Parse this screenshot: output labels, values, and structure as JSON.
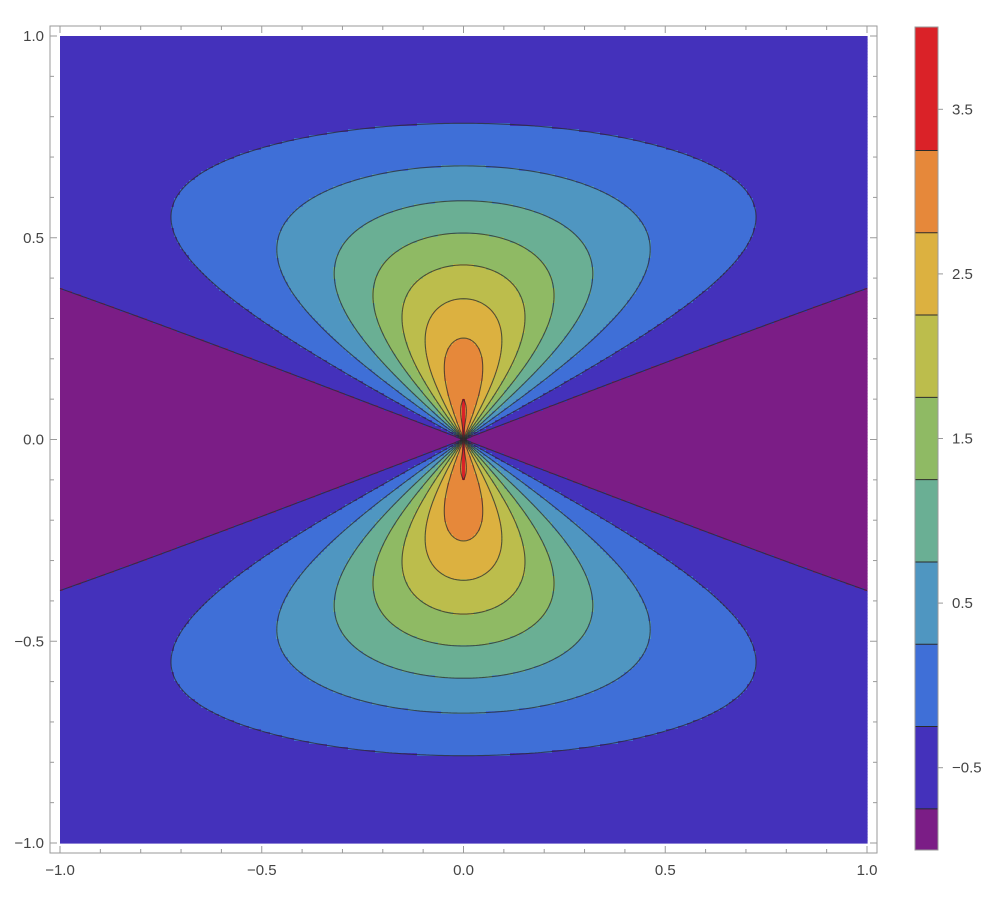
{
  "chart_data": {
    "type": "contour",
    "title": "",
    "xlabel": "",
    "ylabel": "",
    "xlim": [
      -1,
      1
    ],
    "ylim": [
      -1,
      1
    ],
    "x_ticks": [
      -1.0,
      -0.5,
      0.0,
      0.5,
      1.0
    ],
    "x_tick_labels": [
      "−1.0",
      "−0.5",
      "0.0",
      "0.5",
      "1.0"
    ],
    "y_ticks": [
      -1.0,
      -0.5,
      0.0,
      0.5,
      1.0
    ],
    "y_tick_labels": [
      "−1.0",
      "−0.5",
      "0.0",
      "0.5",
      "1.0"
    ],
    "function_form": "f(x,y) = 1.7*cos(pi*y/2)^2 + 2.35*cos(pi*y/2)^2*(y^2-x^2)/(x^2+y^2) - 0.7",
    "contour_levels": [
      -0.75,
      -0.25,
      0.25,
      0.75,
      1.25,
      1.75,
      2.25,
      2.75,
      3.25,
      3.75
    ],
    "value_range": [
      -1.0,
      4.0
    ],
    "legend": {
      "type": "colorbar",
      "placement": "right",
      "range": [
        -1.0,
        4.0
      ],
      "tick_values": [
        -0.5,
        0.5,
        1.5,
        2.5,
        3.5
      ],
      "tick_labels": [
        "−0.5",
        "0.5",
        "1.5",
        "2.5",
        "3.5"
      ]
    },
    "bands": [
      {
        "from": -1.0,
        "to": -0.75,
        "color": "#7b1d86"
      },
      {
        "from": -0.75,
        "to": -0.25,
        "color": "#4431bb"
      },
      {
        "from": -0.25,
        "to": 0.25,
        "color": "#3f6fd7"
      },
      {
        "from": 0.25,
        "to": 0.75,
        "color": "#4f96c1"
      },
      {
        "from": 0.75,
        "to": 1.25,
        "color": "#6aaf94"
      },
      {
        "from": 1.25,
        "to": 1.75,
        "color": "#8fba64"
      },
      {
        "from": 1.75,
        "to": 2.25,
        "color": "#bcbd4c"
      },
      {
        "from": 2.25,
        "to": 2.75,
        "color": "#dcb140"
      },
      {
        "from": 2.75,
        "to": 3.25,
        "color": "#e6883a"
      },
      {
        "from": 3.25,
        "to": 4.0,
        "color": "#da2228"
      }
    ],
    "grid": false
  }
}
